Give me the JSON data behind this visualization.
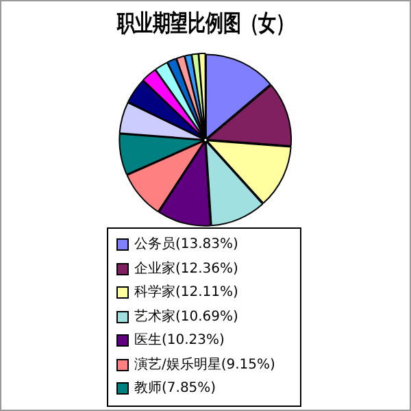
{
  "chart_data": {
    "type": "pie",
    "title": "职业期望比例图（女）",
    "categories": [
      "公务员(13.83%)",
      "企业家(12.36%)",
      "科学家(12.11%)",
      "艺术家(10.69%)",
      "医生(10.23%)",
      "演艺/娱乐明星(9.15%)",
      "教师(7.85%)",
      null,
      null,
      null,
      null,
      null,
      null,
      null,
      null,
      null
    ],
    "values": [
      13.83,
      12.36,
      12.11,
      10.69,
      10.23,
      9.15,
      7.85,
      6.0,
      4.9,
      3.0,
      2.6,
      1.8,
      1.6,
      1.3,
      1.3,
      1.28
    ],
    "colors": [
      "#8080ff",
      "#802060",
      "#ffffa0",
      "#a0e0e0",
      "#600080",
      "#ff8080",
      "#008080",
      "#ccccff",
      "#000080",
      "#ff00ff",
      "#99ffff",
      "#0066cc",
      "#ff9999",
      "#3399ff",
      "#ccff99",
      "#ffff99"
    ],
    "legend": "bottom"
  }
}
